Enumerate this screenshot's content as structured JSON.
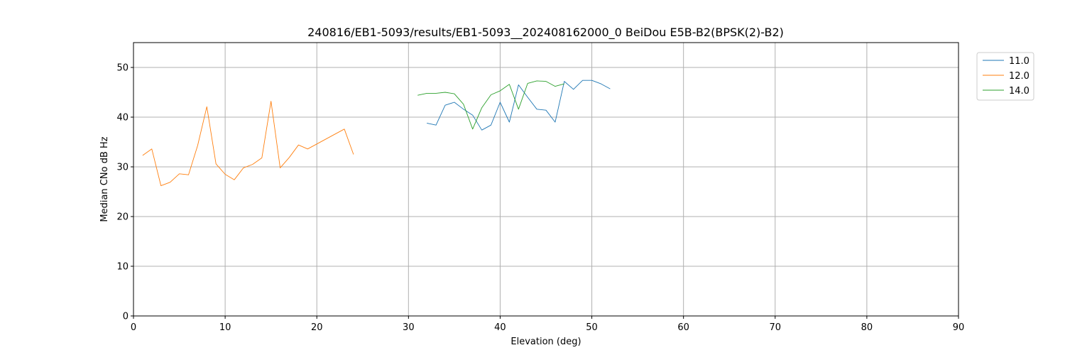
{
  "chart_data": {
    "type": "line",
    "title": "240816/EB1-5093/results/EB1-5093__202408162000_0 BeiDou E5B-B2(BPSK(2)-B2)",
    "xlabel": "Elevation (deg)",
    "ylabel": "Median CNo dB Hz",
    "xlim": [
      0,
      90
    ],
    "ylim": [
      0,
      55
    ],
    "xticks": [
      0,
      10,
      20,
      30,
      40,
      50,
      60,
      70,
      80,
      90
    ],
    "yticks": [
      0,
      10,
      20,
      30,
      40,
      50
    ],
    "grid": true,
    "legend_position": "top-right",
    "series": [
      {
        "name": "11.0",
        "color": "#1f77b4",
        "x": [
          32,
          33,
          34,
          35,
          36,
          37,
          38,
          39,
          40,
          41,
          42,
          43,
          44,
          45,
          46,
          47,
          48,
          49,
          50,
          51,
          52
        ],
        "y": [
          38.8,
          38.4,
          42.4,
          43.0,
          41.6,
          40.4,
          37.4,
          38.4,
          43.0,
          39.0,
          46.5,
          44.0,
          41.6,
          41.4,
          39.0,
          47.2,
          45.6,
          47.4,
          47.4,
          46.7,
          45.7
        ]
      },
      {
        "name": "12.0",
        "color": "#ff7f0e",
        "x": [
          1,
          2,
          3,
          4,
          5,
          6,
          7,
          8,
          9,
          10,
          11,
          12,
          13,
          14,
          15,
          16,
          17,
          18,
          19,
          20,
          21,
          22,
          23,
          24
        ],
        "y": [
          32.3,
          33.6,
          26.2,
          26.9,
          28.6,
          28.4,
          34.3,
          42.1,
          30.6,
          28.5,
          27.4,
          29.8,
          30.5,
          31.8,
          43.2,
          29.8,
          31.9,
          34.4,
          33.6,
          34.6,
          35.6,
          36.6,
          37.6,
          32.5
        ]
      },
      {
        "name": "14.0",
        "color": "#2ca02c",
        "x": [
          31,
          32,
          33,
          34,
          35,
          36,
          37,
          38,
          39,
          40,
          41,
          42,
          43,
          44,
          45,
          46,
          47
        ],
        "y": [
          44.4,
          44.8,
          44.8,
          45.0,
          44.7,
          42.6,
          37.6,
          41.9,
          44.5,
          45.3,
          46.6,
          41.6,
          46.8,
          47.3,
          47.2,
          46.2,
          46.7
        ]
      }
    ]
  }
}
